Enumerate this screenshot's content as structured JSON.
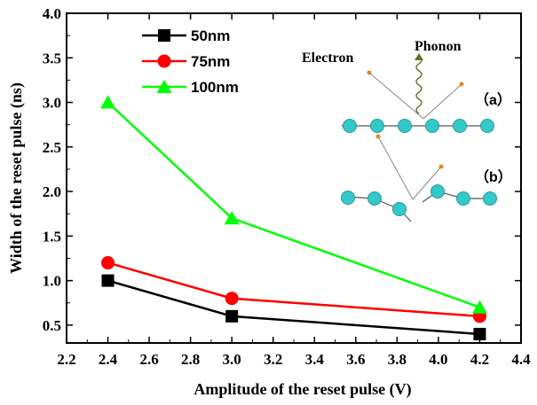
{
  "chart_data": {
    "type": "line",
    "xlabel": "Amplitude of the reset pulse (V)",
    "ylabel": "Width of the reset pulse (ns)",
    "xlim": [
      2.2,
      4.4
    ],
    "ylim": [
      0.3,
      4.0
    ],
    "xticks": [
      2.2,
      2.4,
      2.6,
      2.8,
      3.0,
      3.2,
      3.4,
      3.6,
      3.8,
      4.0,
      4.2,
      4.4
    ],
    "xtick_labels": [
      "2.2",
      "2.4",
      "2.6",
      "2.8",
      "3.0",
      "3.2",
      "3.4",
      "3.6",
      "3.8",
      "4.0",
      "4.2",
      "4.4"
    ],
    "yticks": [
      0.5,
      1.0,
      1.5,
      2.0,
      2.5,
      3.0,
      3.5,
      4.0
    ],
    "ytick_labels": [
      "0.5",
      "1.0",
      "1.5",
      "2.0",
      "2.5",
      "3.0",
      "3.5",
      "4.0"
    ],
    "grid": false,
    "legend_position": "top-left",
    "x": [
      2.4,
      3.0,
      4.2
    ],
    "series": [
      {
        "name": "50nm",
        "values": [
          1.0,
          0.6,
          0.4
        ],
        "color": "#000000",
        "marker": "square"
      },
      {
        "name": "75nm",
        "values": [
          1.2,
          0.8,
          0.6
        ],
        "color": "#ff0000",
        "marker": "circle"
      },
      {
        "name": "100nm",
        "values": [
          3.0,
          1.7,
          0.7
        ],
        "color": "#00ff00",
        "marker": "triangle"
      }
    ],
    "annotations": {
      "electron": "Electron",
      "phonon": "Phonon",
      "tag_a": "（a）",
      "tag_b": "（b）"
    }
  }
}
